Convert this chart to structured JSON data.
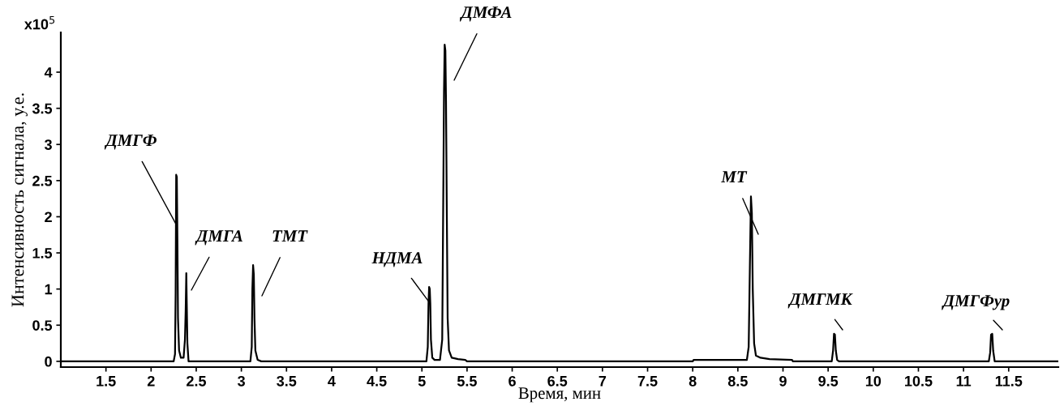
{
  "chart_data": {
    "type": "line",
    "xlabel": "Время, мин",
    "ylabel": "Интенсивность сигнала, у.е.",
    "xlim": [
      1.0,
      12.05
    ],
    "ylim": [
      -0.08,
      4.55
    ],
    "xticks": [
      1.5,
      2,
      2.5,
      3,
      3.5,
      4,
      4.5,
      5,
      5.5,
      6,
      6.5,
      7,
      7.5,
      8,
      8.5,
      9,
      9.5,
      10,
      10.5,
      11,
      11.5
    ],
    "yticks": [
      0,
      0.5,
      1,
      1.5,
      2,
      2.5,
      3,
      3.5,
      4
    ],
    "series": [
      {
        "color": "#000000",
        "x": [
          1.0,
          2.25,
          2.265,
          2.272,
          2.278,
          2.285,
          2.292,
          2.298,
          2.31,
          2.33,
          2.36,
          2.375,
          2.383,
          2.39,
          2.395,
          2.402,
          2.415,
          3.1,
          3.115,
          3.122,
          3.13,
          3.138,
          3.145,
          3.155,
          3.18,
          3.22,
          5.05,
          5.065,
          5.073,
          5.08,
          5.087,
          5.093,
          5.1,
          5.115,
          5.14,
          5.2,
          5.225,
          5.238,
          5.245,
          5.252,
          5.26,
          5.267,
          5.275,
          5.285,
          5.3,
          5.33,
          5.4,
          5.48,
          5.5,
          8.0,
          8.01,
          8.6,
          8.62,
          8.633,
          8.645,
          8.655,
          8.665,
          8.68,
          8.7,
          8.75,
          8.85,
          9.1,
          9.11,
          9.54,
          9.555,
          9.565,
          9.575,
          9.585,
          9.6,
          9.62,
          11.28,
          11.295,
          11.305,
          11.318,
          11.328,
          11.345,
          12.05
        ],
        "values": [
          0,
          0,
          0.1,
          0.95,
          2.58,
          2.55,
          1.6,
          0.6,
          0.15,
          0.05,
          0.05,
          0.3,
          0.7,
          1.22,
          0.8,
          0.25,
          0,
          0,
          0.2,
          1.0,
          1.33,
          1.2,
          0.6,
          0.15,
          0.02,
          0,
          0,
          0.2,
          0.8,
          1.03,
          1.0,
          0.8,
          0.3,
          0.05,
          0.02,
          0.02,
          0.3,
          2.5,
          3.75,
          4.38,
          4.3,
          3.6,
          2.2,
          0.6,
          0.15,
          0.05,
          0.03,
          0.02,
          0,
          0,
          0.02,
          0.02,
          0.2,
          1.3,
          2.28,
          2.05,
          1.0,
          0.25,
          0.08,
          0.05,
          0.03,
          0.02,
          0,
          0,
          0.15,
          0.38,
          0.37,
          0.15,
          0.02,
          0,
          0,
          0.12,
          0.37,
          0.38,
          0.15,
          0,
          0
        ]
      }
    ],
    "annotations": [
      "x10$^{5}$",
      {
        "text": "ДМГФ",
        "x": 2.275,
        "y": 1.9
      },
      "ДМГА",
      "ТМТ",
      {
        "text": "НДМА",
        "x": 5.074,
        "y": 0.83
      },
      "ДМФА",
      "МТ",
      "ДМГМК",
      "ДМГФур"
    ]
  }
}
